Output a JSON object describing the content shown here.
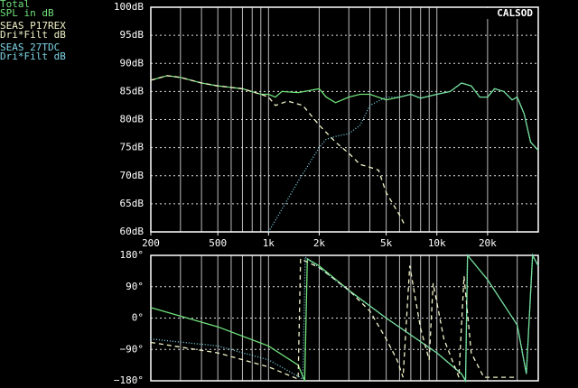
{
  "chart_data": [
    {
      "type": "line",
      "xscale": "log",
      "annotation": "CALSOD",
      "grid": true,
      "xlim": [
        200,
        40000
      ],
      "xticks": [
        200,
        500,
        {
          "value": 1000,
          "label": "1k"
        },
        {
          "value": 2000,
          "label": "2k"
        },
        {
          "value": 5000,
          "label": "5k"
        },
        {
          "value": 10000,
          "label": "10k"
        },
        {
          "value": 20000,
          "label": "20k"
        }
      ],
      "ylim": [
        60,
        100
      ],
      "yticks": [
        {
          "value": 60,
          "label": "60dB"
        },
        {
          "value": 65,
          "label": "65dB"
        },
        {
          "value": 70,
          "label": "70dB"
        },
        {
          "value": 75,
          "label": "75dB"
        },
        {
          "value": 80,
          "label": "80dB"
        },
        {
          "value": 85,
          "label": "85dB"
        },
        {
          "value": 90,
          "label": "90dB"
        },
        {
          "value": 95,
          "label": "95dB"
        },
        {
          "value": 100,
          "label": "100dB"
        }
      ],
      "series": [
        {
          "name": "Total\nSPL in dB",
          "color": "#6fe07a",
          "dash": "solid",
          "x": [
            200,
            250,
            300,
            400,
            500,
            700,
            900,
            1000,
            1100,
            1200,
            1500,
            2000,
            2200,
            2500,
            3000,
            3500,
            4000,
            5000,
            6000,
            7000,
            8000,
            10000,
            12000,
            14000,
            16000,
            18000,
            20000,
            22000,
            25000,
            28000,
            30000,
            33000,
            36000,
            40000
          ],
          "values": [
            87,
            87.8,
            87.5,
            86.5,
            86,
            85.5,
            84.5,
            84.5,
            84,
            85,
            84.8,
            85.5,
            84,
            83,
            84,
            84.5,
            84.5,
            83.5,
            84,
            84.5,
            83.8,
            84.5,
            85,
            86.5,
            86,
            84,
            84,
            85.5,
            85,
            83.5,
            84,
            81,
            76,
            74.5
          ]
        },
        {
          "name": "SEAS P17REX\nDri*Filt dB",
          "color": "#f2f2c8",
          "dash": "dashed",
          "x": [
            200,
            250,
            300,
            400,
            500,
            700,
            900,
            1000,
            1100,
            1300,
            1600,
            2000,
            2500,
            3000,
            3500,
            4000,
            4500,
            5000,
            6000,
            6500
          ],
          "values": [
            87,
            87.8,
            87.5,
            86.5,
            86,
            85.5,
            84.5,
            84,
            82.5,
            83.3,
            82.5,
            79,
            76,
            74,
            72,
            71.5,
            71,
            67,
            63,
            61
          ]
        },
        {
          "name": "SEAS 27TDC\nDri*Filt dB",
          "color": "#7fd6e8",
          "dash": "dotted",
          "x": [
            1000,
            1200,
            1500,
            2000,
            2200,
            2500,
            3000,
            3500,
            4000,
            5000,
            6000,
            7000,
            8000,
            10000,
            12000,
            14000,
            16000,
            18000,
            20000,
            22000,
            25000,
            28000,
            30000,
            33000,
            36000,
            40000
          ],
          "values": [
            60,
            64,
            69,
            75,
            76.5,
            77,
            77.5,
            79,
            82.5,
            84,
            84,
            84.5,
            83.8,
            84.5,
            85,
            86.5,
            86,
            84,
            84,
            85.5,
            85,
            83.5,
            84,
            81,
            76,
            74.5
          ]
        }
      ]
    },
    {
      "type": "line",
      "xscale": "log",
      "grid": true,
      "xlim": [
        200,
        40000
      ],
      "ylim": [
        -180,
        180
      ],
      "yticks": [
        {
          "value": -180,
          "label": "−180°"
        },
        {
          "value": -90,
          "label": "−90°"
        },
        {
          "value": 0,
          "label": "0°"
        },
        {
          "value": 90,
          "label": "90°"
        },
        {
          "value": 180,
          "label": "180°"
        }
      ],
      "series": [
        {
          "color": "#6fe07a",
          "dash": "solid",
          "x": [
            200,
            500,
            1000,
            1500,
            1640,
            1700,
            2000,
            3000,
            5000,
            10000,
            14000,
            14800,
            15200,
            20000,
            30000,
            34000,
            37000,
            40000
          ],
          "values": [
            30,
            -25,
            -80,
            -135,
            -180,
            170,
            150,
            80,
            0,
            -100,
            -160,
            -180,
            180,
            110,
            -20,
            -160,
            180,
            150
          ]
        },
        {
          "color": "#f2f2c8",
          "dash": "dashed",
          "x": [
            200,
            500,
            1000,
            1500,
            1550,
            2000,
            3000,
            4000,
            5000,
            5800,
            6300,
            6900,
            8000,
            9000,
            9500,
            11000,
            13500,
            14500,
            16000,
            19000,
            30000
          ],
          "values": [
            -70,
            -100,
            -140,
            -175,
            170,
            145,
            80,
            20,
            -60,
            -120,
            -170,
            150,
            -30,
            -120,
            100,
            -60,
            -170,
            120,
            -100,
            -170,
            -170
          ]
        },
        {
          "color": "#7fd6e8",
          "dash": "dotted",
          "x": [
            200,
            500,
            1000,
            1600,
            1650,
            2000,
            3000,
            5000,
            10000,
            14000,
            14800,
            15200,
            20000,
            30000,
            34000,
            37000,
            40000
          ],
          "values": [
            -60,
            -80,
            -120,
            -175,
            175,
            145,
            78,
            0,
            -100,
            -160,
            -180,
            180,
            110,
            -20,
            -160,
            180,
            150
          ]
        }
      ]
    }
  ]
}
